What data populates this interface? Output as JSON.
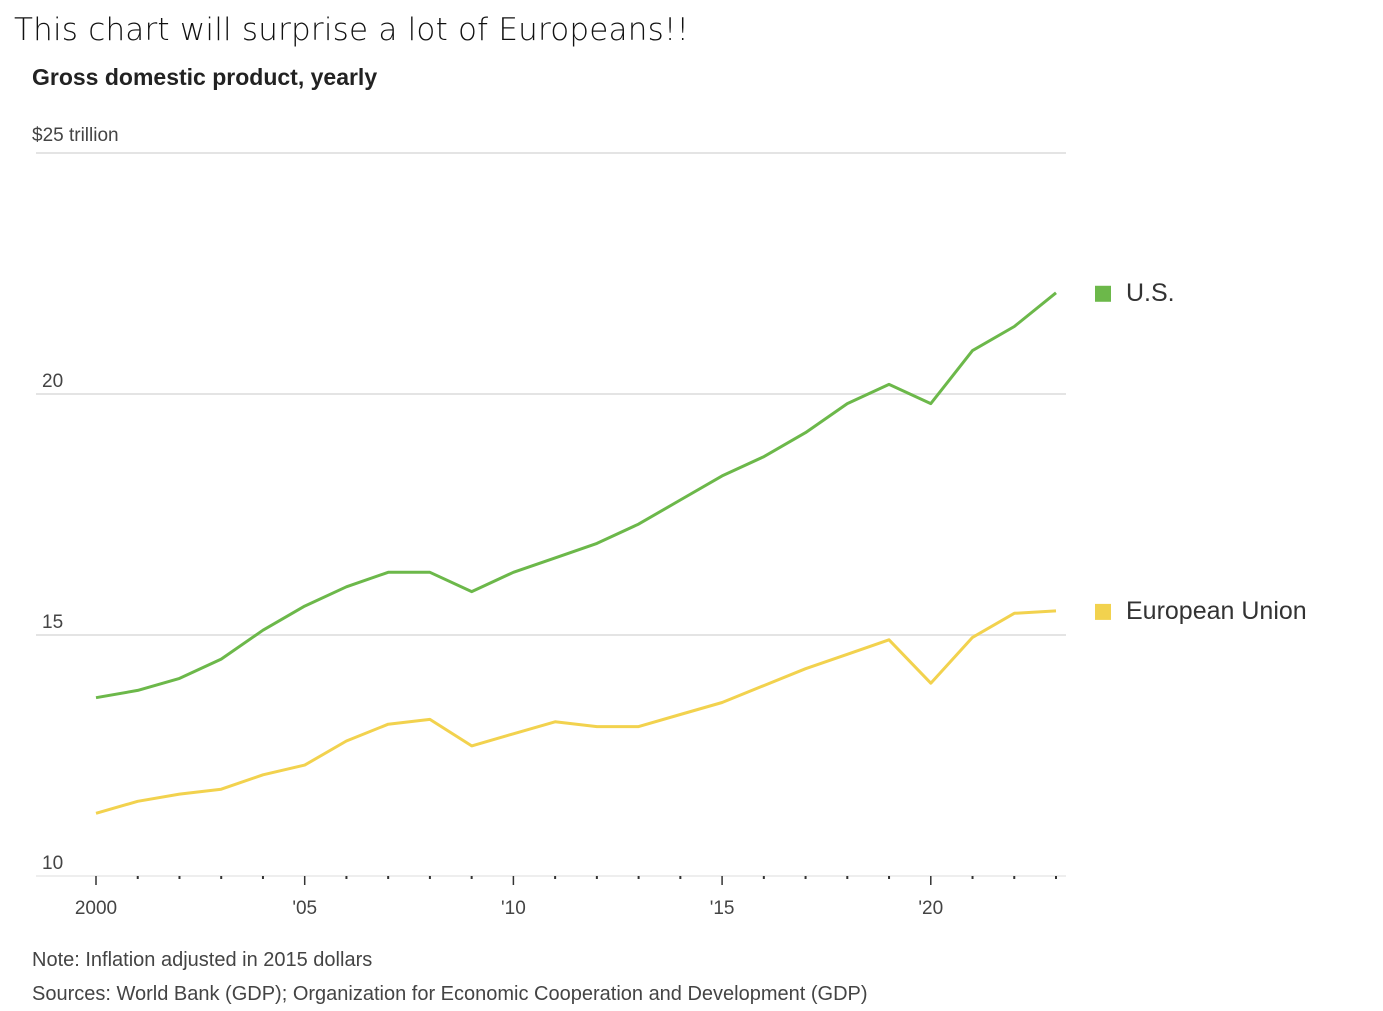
{
  "caption": "This chart will  surprise a lot of Europeans!!",
  "chart_data": {
    "type": "line",
    "title": "Gross domestic product, yearly",
    "unit_label": "$25 trillion",
    "ylim": [
      10,
      25
    ],
    "yticks": [
      {
        "value": 15,
        "label": "15"
      },
      {
        "value": 20,
        "label": "20"
      }
    ],
    "y_base_label": "10",
    "xlim": [
      2000,
      2023
    ],
    "xticks": [
      {
        "value": 2000,
        "label": "2000"
      },
      {
        "value": 2005,
        "label": "'05"
      },
      {
        "value": 2010,
        "label": "'10"
      },
      {
        "value": 2015,
        "label": "'15"
      },
      {
        "value": 2020,
        "label": "'20"
      }
    ],
    "x": [
      2000,
      2001,
      2002,
      2003,
      2004,
      2005,
      2006,
      2007,
      2008,
      2009,
      2010,
      2011,
      2012,
      2013,
      2014,
      2015,
      2016,
      2017,
      2018,
      2019,
      2020,
      2021,
      2022,
      2023
    ],
    "series": [
      {
        "name": "U.S.",
        "color": "#6cb84a",
        "values": [
          13.7,
          13.85,
          14.1,
          14.5,
          15.1,
          15.6,
          16.0,
          16.3,
          16.3,
          15.9,
          16.3,
          16.6,
          16.9,
          17.3,
          17.8,
          18.3,
          18.7,
          19.2,
          19.8,
          20.2,
          19.8,
          20.9,
          21.4,
          22.1
        ]
      },
      {
        "name": "European Union",
        "color": "#f2d24e",
        "values": [
          11.3,
          11.55,
          11.7,
          11.8,
          12.1,
          12.3,
          12.8,
          13.15,
          13.25,
          12.7,
          12.95,
          13.2,
          13.1,
          13.1,
          13.35,
          13.6,
          13.95,
          14.3,
          14.6,
          14.9,
          14.0,
          14.95,
          15.45,
          15.5
        ]
      }
    ],
    "note": "Note: Inflation adjusted in 2015 dollars",
    "sources": "Sources: World Bank (GDP); Organization for Economic Cooperation and Development (GDP)"
  }
}
